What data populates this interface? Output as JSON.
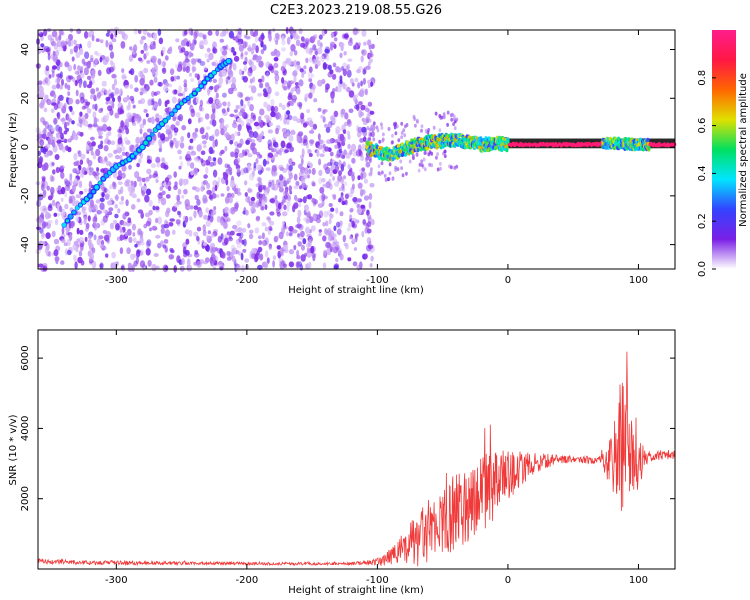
{
  "title": "C2E3.2023.219.08.55.G26",
  "chart_data": [
    {
      "type": "heatmap",
      "xlabel": "Height of straight line (km)",
      "ylabel": "Frequency (Hz)",
      "xlim": [
        -360,
        128
      ],
      "ylim": [
        -50,
        48
      ],
      "xticks": [
        -300,
        -200,
        -100,
        0,
        100
      ],
      "yticks": [
        -40,
        -20,
        0,
        20,
        40
      ],
      "colorbar": {
        "label": "Normalized spectral amplitude",
        "range": [
          0,
          1
        ],
        "ticks": [
          "0.0",
          "0.2",
          "0.4",
          "0.6",
          "0.8"
        ],
        "colors": [
          "#ffffff",
          "#7a1fe6",
          "#3344ff",
          "#00e5ff",
          "#00e060",
          "#e0e000",
          "#ff6600",
          "#ff1744",
          "#ff1e8c"
        ]
      },
      "features": [
        {
          "name": "noise-region",
          "x_range": [
            -360,
            -103
          ],
          "f_range": [
            -50,
            48
          ]
        },
        {
          "name": "rising-track",
          "points": [
            [
              -340,
              -32
            ],
            [
              -330,
              -25
            ],
            [
              -320,
              -20
            ],
            [
              -310,
              -13
            ],
            [
              -300,
              -8
            ],
            [
              -290,
              -5
            ],
            [
              -280,
              0
            ],
            [
              -270,
              7
            ],
            [
              -260,
              12
            ],
            [
              -250,
              18
            ],
            [
              -240,
              22
            ],
            [
              -230,
              28
            ],
            [
              -220,
              33
            ],
            [
              -212,
              36
            ]
          ]
        },
        {
          "name": "signal-band",
          "points": [
            [
              -108,
              0
            ],
            [
              -100,
              -2
            ],
            [
              -90,
              -3
            ],
            [
              -80,
              -1
            ],
            [
              -70,
              1
            ],
            [
              -60,
              2
            ],
            [
              -50,
              2.5
            ],
            [
              -40,
              3
            ],
            [
              -30,
              2
            ],
            [
              -20,
              1
            ],
            [
              -10,
              1.5
            ],
            [
              0,
              1
            ],
            [
              20,
              1
            ],
            [
              40,
              1
            ],
            [
              60,
              1
            ],
            [
              80,
              1.5
            ],
            [
              100,
              1
            ],
            [
              128,
              1
            ]
          ]
        }
      ]
    },
    {
      "type": "line",
      "xlabel": "Height of straight line (km)",
      "ylabel": "SNR (10 * v/v)",
      "xlim": [
        -360,
        128
      ],
      "ylim": [
        0,
        6800
      ],
      "xticks": [
        -300,
        -200,
        -100,
        0,
        100
      ],
      "yticks": [
        2000,
        4000,
        6000
      ],
      "color": "#f03a3a",
      "series": [
        {
          "x": [
            -360,
            -340,
            -320,
            -300,
            -280,
            -260,
            -240,
            -220,
            -200,
            -180,
            -160,
            -140,
            -120,
            -100,
            -90,
            -80,
            -70,
            -60,
            -50,
            -40,
            -30,
            -20,
            -10,
            0,
            10,
            20,
            30,
            40,
            50,
            60,
            70,
            80,
            85,
            90,
            95,
            100,
            105,
            110,
            120,
            128
          ],
          "values": [
            220,
            200,
            180,
            180,
            170,
            170,
            160,
            160,
            160,
            150,
            150,
            150,
            150,
            200,
            350,
            550,
            800,
            1100,
            1350,
            1650,
            1900,
            2150,
            2400,
            2650,
            2850,
            3000,
            3080,
            3120,
            3120,
            3100,
            3120,
            3150,
            3300,
            3400,
            3250,
            3100,
            3150,
            3200,
            3250,
            3250
          ],
          "noise": [
            60,
            60,
            60,
            60,
            50,
            50,
            40,
            40,
            40,
            40,
            40,
            40,
            40,
            100,
            250,
            500,
            800,
            900,
            1000,
            1100,
            1100,
            1100,
            1000,
            700,
            500,
            300,
            200,
            120,
            100,
            120,
            120,
            900,
            1900,
            2100,
            1700,
            1000,
            200,
            150,
            150,
            150
          ]
        }
      ]
    }
  ]
}
